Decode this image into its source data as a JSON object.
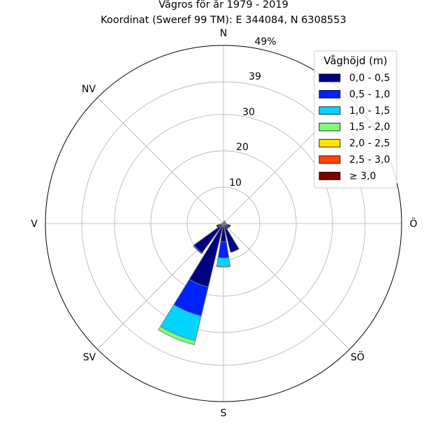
{
  "chart_data": {
    "type": "polar-bar",
    "title": "Vågros för år 1979 - 2019",
    "subtitle": "Koordinat (Sweref 99 TM): E 344084, N 6308553",
    "directions": [
      "N",
      "NV",
      "V",
      "SV",
      "S",
      "SÖ",
      "Ö"
    ],
    "radial_ticks": [
      "10",
      "20",
      "30",
      "39",
      "49%"
    ],
    "radial_tick_values": [
      10,
      20,
      30,
      39,
      49
    ],
    "rmax": 49,
    "legend": {
      "title": "Våghöjd (m)",
      "position": "top-right",
      "bins": [
        {
          "label": "0,0 - 0,5",
          "color": "#000080"
        },
        {
          "label": "0,5 - 1,0",
          "color": "#0022ff"
        },
        {
          "label": "1,0 - 1,5",
          "color": "#00d4ff"
        },
        {
          "label": "1,5 - 2,0",
          "color": "#7dff7a"
        },
        {
          "label": "2,0 - 2,5",
          "color": "#ffe600"
        },
        {
          "label": "2,5 - 3,0",
          "color": "#ff4500"
        },
        {
          "label": "≥ 3,0",
          "color": "#800000"
        }
      ]
    },
    "sectors": [
      {
        "direction_deg": 0,
        "cumulative": [
          0.3
        ]
      },
      {
        "direction_deg": 22.5,
        "cumulative": [
          0.8
        ]
      },
      {
        "direction_deg": 45,
        "cumulative": [
          0.5
        ]
      },
      {
        "direction_deg": 67.5,
        "cumulative": [
          0.6
        ]
      },
      {
        "direction_deg": 90,
        "cumulative": [
          0.7
        ]
      },
      {
        "direction_deg": 112.5,
        "cumulative": [
          2.0
        ]
      },
      {
        "direction_deg": 135,
        "cumulative": [
          1.8
        ]
      },
      {
        "direction_deg": 157.5,
        "cumulative": [
          8.2
        ]
      },
      {
        "direction_deg": 180,
        "cumulative": [
          5.0,
          9.5,
          11.8,
          12.0
        ]
      },
      {
        "direction_deg": 202.5,
        "cumulative": [
          18.0,
          26.2,
          33.2,
          34.3
        ]
      },
      {
        "direction_deg": 225,
        "cumulative": [
          10.0,
          10.3
        ]
      },
      {
        "direction_deg": 247.5,
        "cumulative": [
          2.0
        ]
      },
      {
        "direction_deg": 270,
        "cumulative": [
          0.4
        ]
      },
      {
        "direction_deg": 292.5,
        "cumulative": [
          0.3
        ]
      },
      {
        "direction_deg": 315,
        "cumulative": [
          0.3
        ]
      },
      {
        "direction_deg": 337.5,
        "cumulative": [
          0.3
        ]
      }
    ]
  }
}
